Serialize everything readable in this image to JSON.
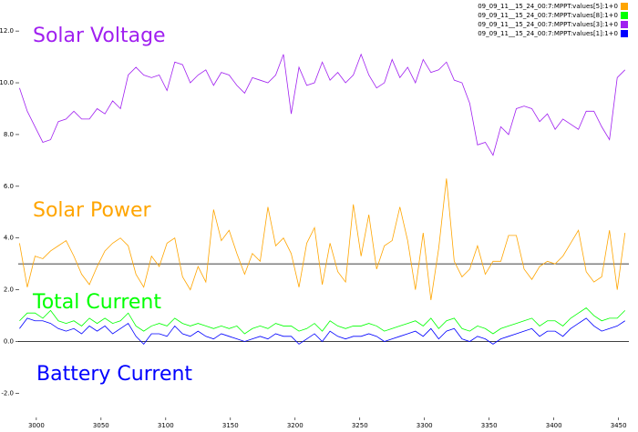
{
  "chart_data": {
    "type": "line",
    "annotations": [
      {
        "text": "Solar Voltage",
        "color": "#a020f0"
      },
      {
        "text": "Solar Power",
        "color": "#ffa500"
      },
      {
        "text": "Total Current",
        "color": "#00ff00"
      },
      {
        "text": "Battery Current",
        "color": "#0000ff"
      }
    ],
    "legend": "upper right",
    "xlim": [
      2986,
      3458
    ],
    "xticks": [
      3000,
      3050,
      3100,
      3150,
      3200,
      3250,
      3300,
      3350,
      3400,
      3450
    ],
    "ylim": [
      -2.9,
      13.2
    ],
    "yticks": [
      {
        "value": -2,
        "label": "-2.0"
      },
      {
        "value": 0,
        "label": "0.0"
      },
      {
        "value": 2,
        "label": "2.0"
      },
      {
        "value": 4,
        "label": "4.0"
      },
      {
        "value": 6,
        "label": "6.0"
      },
      {
        "value": 8,
        "label": "8.0"
      },
      {
        "value": 10,
        "label": "10.0"
      },
      {
        "value": 12,
        "label": "12.0"
      }
    ],
    "hlines": [
      3,
      0
    ],
    "x": [
      2987,
      2993,
      2999,
      3005,
      3011,
      3017,
      3023,
      3029,
      3035,
      3041,
      3047,
      3053,
      3059,
      3065,
      3071,
      3077,
      3083,
      3089,
      3095,
      3101,
      3107,
      3113,
      3119,
      3125,
      3131,
      3137,
      3143,
      3149,
      3155,
      3161,
      3167,
      3173,
      3179,
      3185,
      3191,
      3197,
      3203,
      3209,
      3215,
      3221,
      3227,
      3233,
      3239,
      3245,
      3251,
      3257,
      3263,
      3269,
      3275,
      3281,
      3287,
      3293,
      3299,
      3305,
      3311,
      3317,
      3323,
      3329,
      3335,
      3341,
      3347,
      3353,
      3359,
      3365,
      3371,
      3377,
      3383,
      3389,
      3395,
      3401,
      3407,
      3413,
      3419,
      3425,
      3431,
      3437,
      3443,
      3449,
      3455
    ],
    "series": [
      {
        "name": "09_09_11__15_24_00:7:MPPT:values[5]:1+0",
        "color": "#ffa500",
        "values": [
          3.8,
          2.1,
          3.3,
          3.2,
          3.5,
          3.7,
          3.9,
          3.3,
          2.6,
          2.2,
          2.9,
          3.5,
          3.8,
          4.0,
          3.7,
          2.6,
          2.1,
          3.3,
          2.9,
          3.8,
          4.0,
          2.5,
          2.0,
          2.9,
          2.3,
          5.1,
          3.9,
          4.3,
          3.4,
          2.6,
          3.4,
          3.1,
          5.2,
          3.7,
          4.0,
          3.4,
          2.1,
          3.8,
          4.4,
          2.2,
          3.8,
          2.7,
          2.3,
          5.3,
          3.3,
          4.9,
          2.8,
          3.7,
          3.9,
          5.2,
          3.9,
          2.0,
          4.2,
          1.6,
          3.6,
          6.3,
          3.1,
          2.5,
          2.8,
          3.7,
          2.6,
          3.1,
          3.1,
          4.1,
          4.1,
          2.8,
          2.4,
          2.9,
          3.1,
          3.0,
          3.3,
          3.8,
          4.3,
          2.7,
          2.3,
          2.5,
          4.3,
          2.0,
          4.2
        ]
      },
      {
        "name": "09_09_11__15_24_00:7:MPPT:values[8]:1+0",
        "color": "#00ff00",
        "values": [
          0.8,
          1.1,
          1.1,
          0.9,
          1.2,
          0.8,
          0.7,
          0.8,
          0.6,
          0.9,
          0.7,
          0.9,
          0.7,
          0.8,
          1.1,
          0.6,
          0.4,
          0.6,
          0.7,
          0.6,
          0.9,
          0.7,
          0.6,
          0.7,
          0.6,
          0.5,
          0.6,
          0.5,
          0.6,
          0.3,
          0.5,
          0.6,
          0.5,
          0.7,
          0.6,
          0.6,
          0.4,
          0.5,
          0.7,
          0.4,
          0.8,
          0.6,
          0.5,
          0.6,
          0.6,
          0.7,
          0.6,
          0.4,
          0.5,
          0.6,
          0.7,
          0.8,
          0.6,
          0.9,
          0.5,
          0.8,
          0.9,
          0.5,
          0.4,
          0.6,
          0.5,
          0.3,
          0.5,
          0.6,
          0.7,
          0.8,
          0.9,
          0.6,
          0.8,
          0.8,
          0.6,
          0.9,
          1.1,
          1.3,
          1.0,
          0.8,
          0.9,
          0.9,
          1.2
        ]
      },
      {
        "name": "09_09_11__15_24_00:7:MPPT:values[3]:1+0",
        "color": "#a020f0",
        "values": [
          9.8,
          8.9,
          8.3,
          7.7,
          7.8,
          8.5,
          8.6,
          8.9,
          8.6,
          8.6,
          9.0,
          8.8,
          9.3,
          9.0,
          10.3,
          10.6,
          10.3,
          10.2,
          10.3,
          9.7,
          10.8,
          10.7,
          10.0,
          10.3,
          10.5,
          9.9,
          10.4,
          10.3,
          9.9,
          9.6,
          10.2,
          10.1,
          10.0,
          10.3,
          11.1,
          8.8,
          10.6,
          9.9,
          10.0,
          10.8,
          10.1,
          10.4,
          10.0,
          10.3,
          11.1,
          10.3,
          9.8,
          10.0,
          10.9,
          10.2,
          10.6,
          10.0,
          10.9,
          10.4,
          10.5,
          10.8,
          10.1,
          10.0,
          9.2,
          7.6,
          7.7,
          7.2,
          8.3,
          8.0,
          9.0,
          9.1,
          9.0,
          8.5,
          8.8,
          8.2,
          8.6,
          8.4,
          8.2,
          8.9,
          8.9,
          8.3,
          7.8,
          10.2,
          10.5
        ]
      },
      {
        "name": "09_09_11__15_24_00:7:MPPT:values[1]:1+0",
        "color": "#0000ff",
        "values": [
          0.5,
          0.9,
          0.8,
          0.8,
          0.7,
          0.5,
          0.4,
          0.5,
          0.3,
          0.6,
          0.4,
          0.6,
          0.3,
          0.5,
          0.7,
          0.2,
          -0.1,
          0.3,
          0.3,
          0.2,
          0.6,
          0.3,
          0.2,
          0.4,
          0.2,
          0.1,
          0.3,
          0.2,
          0.1,
          0.0,
          0.1,
          0.2,
          0.1,
          0.3,
          0.2,
          0.2,
          -0.1,
          0.1,
          0.3,
          0.0,
          0.4,
          0.2,
          0.1,
          0.2,
          0.2,
          0.3,
          0.2,
          0.0,
          0.1,
          0.2,
          0.3,
          0.4,
          0.2,
          0.5,
          0.1,
          0.4,
          0.5,
          0.1,
          0.0,
          0.2,
          0.1,
          -0.1,
          0.1,
          0.2,
          0.3,
          0.4,
          0.5,
          0.2,
          0.4,
          0.4,
          0.2,
          0.5,
          0.7,
          0.9,
          0.6,
          0.4,
          0.5,
          0.6,
          0.8
        ]
      }
    ]
  }
}
